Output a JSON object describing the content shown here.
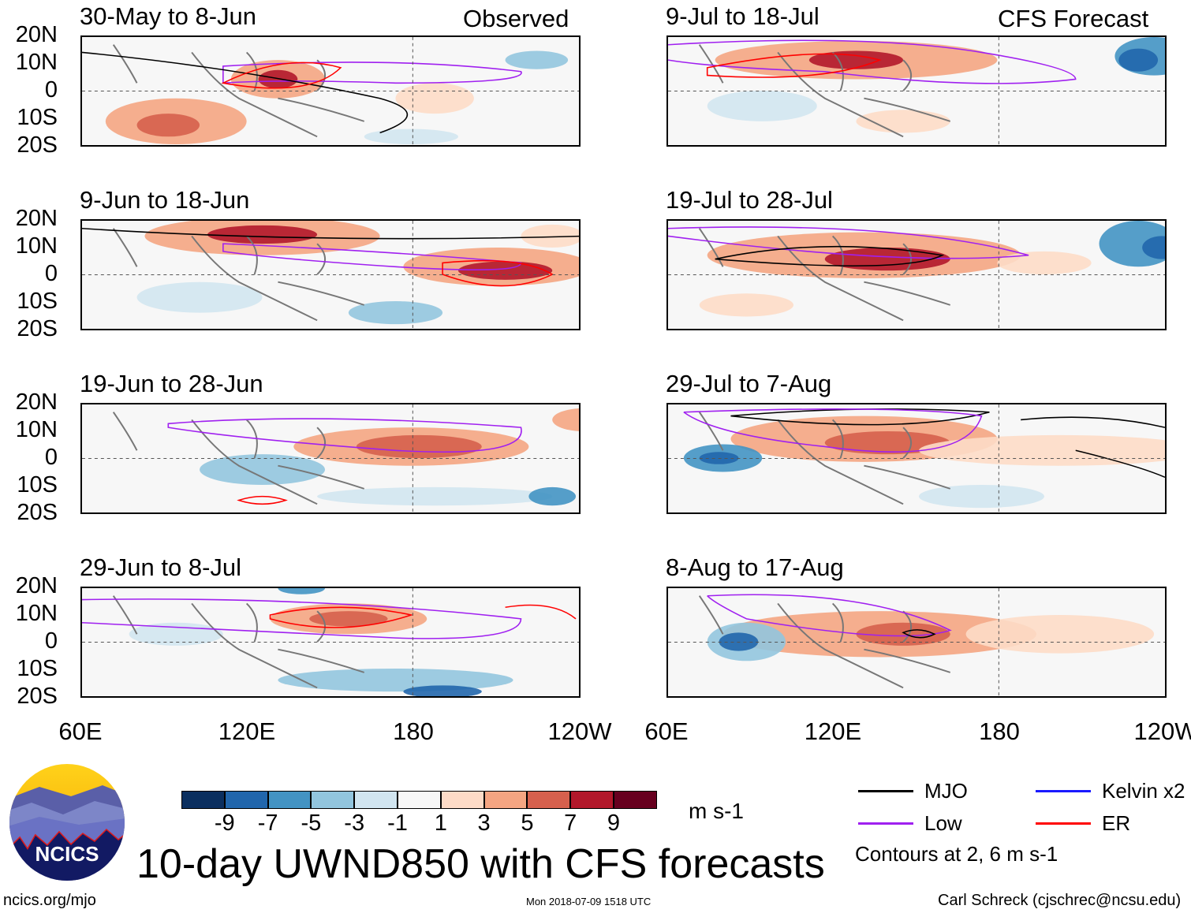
{
  "headers": {
    "left": "Observed",
    "right": "CFS Forecast"
  },
  "panels": [
    {
      "title": "30-May to 8-Jun",
      "column": "observed"
    },
    {
      "title": "9-Jun to 18-Jun",
      "column": "observed"
    },
    {
      "title": "19-Jun to 28-Jun",
      "column": "observed"
    },
    {
      "title": "29-Jun to 8-Jul",
      "column": "observed"
    },
    {
      "title": "9-Jul to 18-Jul",
      "column": "forecast"
    },
    {
      "title": "19-Jul to 28-Jul",
      "column": "forecast"
    },
    {
      "title": "29-Jul to 7-Aug",
      "column": "forecast"
    },
    {
      "title": "8-Aug to 17-Aug",
      "column": "forecast"
    }
  ],
  "lat_labels": [
    "20N",
    "10N",
    "0",
    "10S",
    "20S"
  ],
  "lon_labels": [
    "60E",
    "120E",
    "180",
    "120W"
  ],
  "colorbar": {
    "colors": [
      "#0b2f5f",
      "#2166ac",
      "#4393c3",
      "#92c5de",
      "#d1e5f0",
      "#f7f7f7",
      "#fddbc7",
      "#f4a582",
      "#d6604d",
      "#b2182b",
      "#67001f"
    ],
    "labels": [
      "-9",
      "-7",
      "-5",
      "-3",
      "-1",
      "1",
      "3",
      "5",
      "7",
      "9"
    ],
    "units": "m s-1"
  },
  "legend": {
    "items": [
      {
        "label": "MJO",
        "color": "#000000"
      },
      {
        "label": "Kelvin x2",
        "color": "#1a1aff"
      },
      {
        "label": "Low",
        "color": "#a020f0"
      },
      {
        "label": "ER",
        "color": "#ff0000"
      }
    ],
    "note": "Contours at 2, 6 m s-1"
  },
  "title": "10-day UWND850 with CFS forecasts",
  "logo": {
    "text": "NCICS"
  },
  "footer": {
    "left": "ncics.org/mjo",
    "center": "Mon 2018-07-09 1518 UTC",
    "right": "Carl Schreck (cjschrec@ncsu.edu)"
  }
}
